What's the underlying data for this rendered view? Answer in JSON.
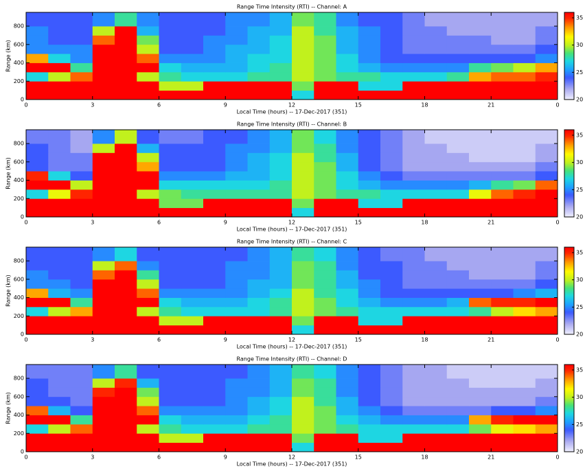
{
  "chart_data": [
    {
      "type": "heatmap",
      "title": "Range Time Intensity (RTI) -- Channel: A",
      "xlabel": "Local Time (hours) -- 17-Dec-2017 (351)",
      "ylabel": "Range (km)",
      "time_bins": [
        0,
        1,
        2,
        3,
        4,
        5,
        6,
        7,
        8,
        9,
        10,
        11,
        12,
        13,
        14,
        15,
        16,
        17,
        18,
        19,
        20,
        21,
        22,
        23,
        24
      ],
      "range_bins": [
        0,
        100,
        200,
        300,
        400,
        500,
        600,
        700,
        800,
        950
      ],
      "values": [
        [
          36,
          36,
          36,
          36,
          36,
          36,
          36,
          36,
          36,
          36,
          36,
          36,
          27,
          36,
          36,
          36,
          36,
          36,
          36,
          36,
          36,
          36,
          36,
          36
        ],
        [
          36,
          36,
          36,
          36,
          36,
          36,
          30,
          30,
          36,
          36,
          36,
          36,
          29,
          36,
          36,
          27,
          27,
          36,
          36,
          36,
          36,
          36,
          36,
          36
        ],
        [
          27,
          30,
          34,
          36,
          36,
          30,
          28,
          27,
          27,
          27,
          28,
          28,
          30,
          29,
          28,
          28,
          27,
          27,
          27,
          28,
          33,
          34,
          34,
          35
        ],
        [
          36,
          36,
          28,
          36,
          36,
          36,
          27,
          26,
          26,
          26,
          27,
          28,
          30,
          29,
          27,
          26,
          25,
          25,
          25,
          25,
          28,
          29,
          30,
          33
        ],
        [
          33,
          27,
          25,
          36,
          36,
          34,
          25,
          25,
          25,
          26,
          27,
          27,
          30,
          29,
          27,
          25,
          24,
          24,
          24,
          24,
          24,
          24,
          24,
          25
        ],
        [
          25,
          25,
          25,
          36,
          36,
          30,
          24,
          24,
          25,
          26,
          26,
          27,
          30,
          29,
          26,
          25,
          24,
          23,
          23,
          23,
          23,
          23,
          23,
          24
        ],
        [
          25,
          24,
          24,
          34,
          36,
          29,
          24,
          24,
          25,
          25,
          26,
          27,
          30,
          29,
          26,
          25,
          24,
          23,
          23,
          23,
          23,
          22,
          22,
          23
        ],
        [
          25,
          24,
          24,
          30,
          36,
          26,
          24,
          24,
          24,
          25,
          26,
          26,
          30,
          28,
          26,
          25,
          24,
          23,
          23,
          22,
          22,
          22,
          22,
          23
        ],
        [
          24,
          24,
          24,
          25,
          28,
          25,
          24,
          24,
          24,
          25,
          25,
          26,
          29,
          28,
          25,
          24,
          24,
          23,
          22,
          22,
          22,
          22,
          22,
          22
        ]
      ],
      "xlim": [
        0,
        24
      ],
      "xticks": [
        0,
        3,
        6,
        9,
        12,
        15,
        18,
        21,
        {
          "value": 24,
          "label": "0"
        }
      ],
      "ylim": [
        0,
        950
      ],
      "yticks": [
        0,
        200,
        400,
        600,
        800
      ],
      "clim": [
        20,
        36
      ],
      "cticks": [
        20,
        25,
        30,
        35
      ]
    },
    {
      "type": "heatmap",
      "title": "Range Time Intensity (RTI) -- Channel: B",
      "xlabel": "Local Time (hours) -- 17-Dec-2017 (351)",
      "ylabel": "Range (km)",
      "time_bins": [
        0,
        1,
        2,
        3,
        4,
        5,
        6,
        7,
        8,
        9,
        10,
        11,
        12,
        13,
        14,
        15,
        16,
        17,
        18,
        19,
        20,
        21,
        22,
        23,
        24
      ],
      "range_bins": [
        0,
        100,
        200,
        300,
        400,
        500,
        600,
        700,
        800,
        950
      ],
      "values": [
        [
          36,
          36,
          36,
          36,
          36,
          36,
          36,
          36,
          36,
          36,
          36,
          36,
          27,
          36,
          36,
          36,
          36,
          36,
          36,
          36,
          36,
          36,
          36,
          36
        ],
        [
          36,
          36,
          36,
          36,
          36,
          36,
          29,
          29,
          36,
          36,
          36,
          36,
          29,
          36,
          36,
          27,
          27,
          36,
          36,
          36,
          36,
          36,
          36,
          36
        ],
        [
          27,
          31,
          35,
          36,
          36,
          30,
          29,
          28,
          28,
          28,
          28,
          28,
          30,
          29,
          28,
          28,
          27,
          27,
          27,
          27,
          31,
          34,
          35,
          36
        ],
        [
          36,
          36,
          30,
          36,
          36,
          36,
          27,
          27,
          27,
          27,
          27,
          28,
          30,
          29,
          27,
          26,
          25,
          25,
          25,
          25,
          26,
          28,
          29,
          34
        ],
        [
          35,
          27,
          24,
          36,
          36,
          36,
          25,
          25,
          25,
          26,
          26,
          27,
          30,
          29,
          27,
          25,
          24,
          23,
          23,
          23,
          23,
          23,
          23,
          24
        ],
        [
          24,
          23,
          23,
          36,
          36,
          33,
          24,
          24,
          24,
          25,
          26,
          27,
          30,
          29,
          26,
          24,
          23,
          22,
          22,
          22,
          22,
          22,
          22,
          23
        ],
        [
          24,
          23,
          23,
          36,
          36,
          30,
          24,
          24,
          24,
          25,
          26,
          27,
          30,
          28,
          26,
          24,
          23,
          22,
          22,
          22,
          21,
          21,
          21,
          22
        ],
        [
          24,
          23,
          22,
          30,
          36,
          26,
          24,
          24,
          24,
          25,
          25,
          26,
          29,
          28,
          25,
          24,
          23,
          22,
          22,
          21,
          21,
          21,
          21,
          22
        ],
        [
          23,
          23,
          22,
          25,
          30,
          24,
          23,
          23,
          24,
          24,
          25,
          26,
          29,
          27,
          25,
          24,
          23,
          22,
          21,
          21,
          21,
          21,
          21,
          21
        ]
      ],
      "xlim": [
        0,
        24
      ],
      "xticks": [
        0,
        3,
        6,
        9,
        12,
        15,
        18,
        21,
        {
          "value": 24,
          "label": "0"
        }
      ],
      "ylim": [
        0,
        950
      ],
      "yticks": [
        0,
        200,
        400,
        600,
        800
      ],
      "clim": [
        20,
        36
      ],
      "cticks": [
        20,
        25,
        30,
        35
      ]
    },
    {
      "type": "heatmap",
      "title": "Range Time Intensity (RTI) -- Channel: C",
      "xlabel": "Local Time (hours) -- 17-Dec-2017 (351)",
      "ylabel": "Range (km)",
      "time_bins": [
        0,
        1,
        2,
        3,
        4,
        5,
        6,
        7,
        8,
        9,
        10,
        11,
        12,
        13,
        14,
        15,
        16,
        17,
        18,
        19,
        20,
        21,
        22,
        23,
        24
      ],
      "range_bins": [
        0,
        100,
        200,
        300,
        400,
        500,
        600,
        700,
        800,
        950
      ],
      "values": [
        [
          36,
          36,
          36,
          36,
          36,
          36,
          36,
          36,
          36,
          36,
          36,
          36,
          27,
          36,
          36,
          36,
          36,
          36,
          36,
          36,
          36,
          36,
          36,
          36
        ],
        [
          36,
          36,
          36,
          36,
          36,
          36,
          30,
          30,
          36,
          36,
          36,
          36,
          29,
          36,
          36,
          27,
          27,
          36,
          36,
          36,
          36,
          36,
          36,
          36
        ],
        [
          27,
          30,
          33,
          36,
          36,
          30,
          28,
          27,
          27,
          27,
          27,
          28,
          30,
          29,
          28,
          27,
          27,
          27,
          27,
          27,
          28,
          30,
          32,
          33
        ],
        [
          36,
          36,
          28,
          36,
          36,
          36,
          27,
          26,
          26,
          26,
          27,
          28,
          30,
          29,
          27,
          26,
          25,
          25,
          25,
          26,
          34,
          35,
          35,
          36
        ],
        [
          33,
          26,
          25,
          36,
          36,
          34,
          25,
          25,
          25,
          25,
          26,
          27,
          30,
          28,
          27,
          25,
          24,
          24,
          24,
          24,
          24,
          24,
          25,
          26
        ],
        [
          25,
          25,
          24,
          36,
          36,
          30,
          24,
          24,
          24,
          25,
          26,
          26,
          29,
          28,
          26,
          25,
          24,
          23,
          23,
          23,
          23,
          23,
          23,
          24
        ],
        [
          25,
          24,
          24,
          34,
          36,
          28,
          24,
          24,
          24,
          25,
          25,
          26,
          29,
          28,
          26,
          24,
          24,
          23,
          23,
          23,
          22,
          22,
          22,
          23
        ],
        [
          24,
          24,
          24,
          30,
          34,
          25,
          24,
          24,
          24,
          25,
          25,
          26,
          29,
          28,
          25,
          24,
          24,
          23,
          23,
          22,
          22,
          22,
          22,
          23
        ],
        [
          24,
          24,
          24,
          25,
          27,
          24,
          24,
          24,
          24,
          24,
          25,
          26,
          28,
          27,
          25,
          24,
          23,
          23,
          22,
          22,
          22,
          22,
          22,
          22
        ]
      ],
      "xlim": [
        0,
        24
      ],
      "xticks": [
        0,
        3,
        6,
        9,
        12,
        15,
        18,
        21,
        {
          "value": 24,
          "label": "0"
        }
      ],
      "ylim": [
        0,
        950
      ],
      "yticks": [
        0,
        200,
        400,
        600,
        800
      ],
      "clim": [
        20,
        36
      ],
      "cticks": [
        20,
        25,
        30,
        35
      ]
    },
    {
      "type": "heatmap",
      "title": "Range Time Intensity (RTI) -- Channel: D",
      "xlabel": "Local Time (hours) -- 17-Dec-2017 (351)",
      "ylabel": "Range (km)",
      "time_bins": [
        0,
        1,
        2,
        3,
        4,
        5,
        6,
        7,
        8,
        9,
        10,
        11,
        12,
        13,
        14,
        15,
        16,
        17,
        18,
        19,
        20,
        21,
        22,
        23,
        24
      ],
      "range_bins": [
        0,
        100,
        200,
        300,
        400,
        500,
        600,
        700,
        800,
        950
      ],
      "values": [
        [
          36,
          36,
          36,
          36,
          36,
          36,
          36,
          36,
          36,
          36,
          36,
          36,
          27,
          36,
          36,
          36,
          36,
          36,
          36,
          36,
          36,
          36,
          36,
          36
        ],
        [
          36,
          36,
          36,
          36,
          36,
          36,
          30,
          30,
          36,
          36,
          36,
          36,
          29,
          36,
          36,
          27,
          27,
          36,
          36,
          36,
          36,
          36,
          36,
          36
        ],
        [
          27,
          30,
          34,
          36,
          36,
          30,
          28,
          27,
          27,
          27,
          28,
          28,
          30,
          29,
          28,
          27,
          27,
          27,
          27,
          27,
          29,
          31,
          32,
          33
        ],
        [
          36,
          36,
          28,
          36,
          36,
          36,
          27,
          26,
          26,
          26,
          27,
          28,
          30,
          29,
          27,
          26,
          25,
          25,
          25,
          25,
          33,
          35,
          36,
          36
        ],
        [
          34,
          26,
          24,
          36,
          36,
          34,
          25,
          25,
          25,
          25,
          26,
          27,
          30,
          29,
          26,
          25,
          24,
          23,
          23,
          23,
          23,
          24,
          24,
          25
        ],
        [
          24,
          24,
          23,
          36,
          36,
          30,
          24,
          24,
          24,
          25,
          26,
          27,
          30,
          28,
          26,
          24,
          23,
          22,
          22,
          22,
          22,
          22,
          22,
          23
        ],
        [
          24,
          23,
          23,
          35,
          36,
          29,
          24,
          24,
          24,
          25,
          25,
          26,
          29,
          28,
          25,
          24,
          23,
          22,
          22,
          22,
          22,
          22,
          22,
          22
        ],
        [
          24,
          23,
          23,
          30,
          35,
          26,
          24,
          24,
          24,
          25,
          25,
          26,
          29,
          28,
          25,
          24,
          23,
          22,
          22,
          22,
          21,
          21,
          21,
          22
        ],
        [
          23,
          23,
          23,
          25,
          28,
          24,
          24,
          24,
          24,
          24,
          25,
          26,
          28,
          27,
          25,
          24,
          23,
          22,
          22,
          21,
          21,
          21,
          21,
          21
        ]
      ],
      "xlim": [
        0,
        24
      ],
      "xticks": [
        0,
        3,
        6,
        9,
        12,
        15,
        18,
        21,
        {
          "value": 24,
          "label": "0"
        }
      ],
      "ylim": [
        0,
        950
      ],
      "yticks": [
        0,
        200,
        400,
        600,
        800
      ],
      "clim": [
        20,
        36
      ],
      "cticks": [
        20,
        25,
        30,
        35
      ]
    }
  ]
}
